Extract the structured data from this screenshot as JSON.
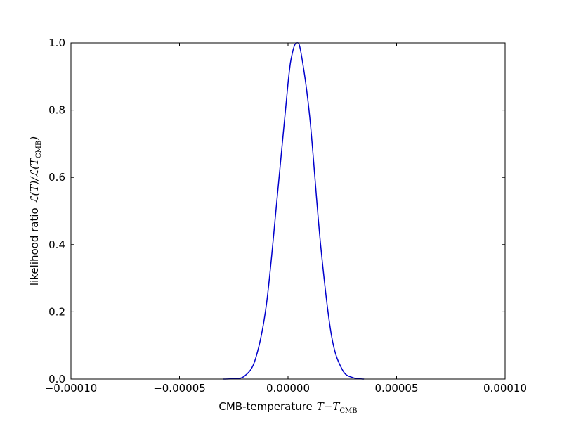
{
  "chart_data": {
    "type": "line",
    "title": "",
    "xlabel": {
      "text": "CMB-temperature",
      "math_main": "T−T",
      "math_sub": "CMB"
    },
    "ylabel": {
      "text": "likelihood ratio",
      "math_main": "ℒ(T)/ℒ(T",
      "math_sub": "CMB",
      "math_close": ")"
    },
    "xlim": [
      -0.0001,
      0.0001
    ],
    "ylim": [
      0.0,
      1.0
    ],
    "x_ticks": [
      -0.0001,
      -5e-05,
      0.0,
      5e-05,
      0.0001
    ],
    "x_tick_labels": [
      "−0.00010",
      "−0.00005",
      "0.00000",
      "0.00005",
      "0.00010"
    ],
    "y_ticks": [
      0.0,
      0.2,
      0.4,
      0.6,
      0.8,
      1.0
    ],
    "y_tick_labels": [
      "0.0",
      "0.2",
      "0.4",
      "0.6",
      "0.8",
      "1.0"
    ],
    "grid": false,
    "series": [
      {
        "color": "#0000cc",
        "x": [
          -3e-05,
          -2.5e-05,
          -2e-05,
          -1.5e-05,
          -1e-05,
          -5e-06,
          0.0,
          2e-06,
          4e-06,
          6e-06,
          1e-05,
          1.5e-05,
          2e-05,
          2.5e-05,
          3e-05,
          3.5e-05
        ],
        "y": [
          0.0,
          0.001,
          0.009,
          0.06,
          0.22,
          0.54,
          0.88,
          0.97,
          1.0,
          0.97,
          0.78,
          0.4,
          0.13,
          0.028,
          0.004,
          0.0
        ]
      }
    ]
  }
}
